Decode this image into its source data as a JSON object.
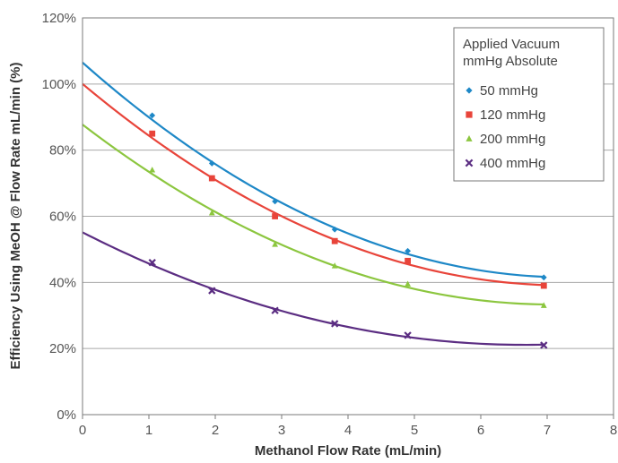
{
  "chart_data": {
    "type": "scatter",
    "title": "",
    "xlabel": "Methanol Flow Rate (mL/min)",
    "ylabel": "Efficiency Using MeOH @ Flow Rate mL/min (%)",
    "xlim": [
      0,
      8
    ],
    "ylim": [
      0,
      120
    ],
    "x_ticks": [
      0,
      1,
      2,
      3,
      4,
      5,
      6,
      7,
      8
    ],
    "x_tick_labels": [
      "0",
      "1",
      "2",
      "3",
      "4",
      "5",
      "6",
      "7",
      "8"
    ],
    "y_ticks": [
      0,
      20,
      40,
      60,
      80,
      100,
      120
    ],
    "y_tick_labels": [
      "0%",
      "20%",
      "40%",
      "60%",
      "80%",
      "100%",
      "120%"
    ],
    "grid": "horizontal",
    "legend": {
      "title_line1": "Applied Vacuum",
      "title_line2": "mmHg Absolute",
      "placement": "top-right"
    },
    "trendline": "polynomial",
    "series": [
      {
        "name": "50 mmHg",
        "color": "#1e88c7",
        "marker": "diamond",
        "x": [
          1.05,
          1.95,
          2.9,
          3.8,
          4.9,
          6.95
        ],
        "y": [
          90.5,
          76,
          64.5,
          56,
          49.5,
          41.5
        ],
        "fit_start": 106
      },
      {
        "name": "120 mmHg",
        "color": "#e8443a",
        "marker": "square",
        "x": [
          1.05,
          1.95,
          2.9,
          3.8,
          4.9,
          6.95
        ],
        "y": [
          85,
          71.5,
          60,
          52.5,
          46.5,
          39
        ],
        "fit_start": 99.5
      },
      {
        "name": "200 mmHg",
        "color": "#8cc63f",
        "marker": "triangle",
        "x": [
          1.05,
          1.95,
          2.9,
          3.8,
          4.9,
          6.95
        ],
        "y": [
          74,
          61,
          51.5,
          45,
          39.5,
          33
        ],
        "fit_start": 87.5
      },
      {
        "name": "400 mmHg",
        "color": "#5b2d82",
        "marker": "x",
        "x": [
          1.05,
          1.95,
          2.9,
          3.8,
          4.9,
          6.95
        ],
        "y": [
          46,
          37.5,
          31.5,
          27.5,
          24,
          21
        ],
        "fit_start": 55
      }
    ]
  }
}
